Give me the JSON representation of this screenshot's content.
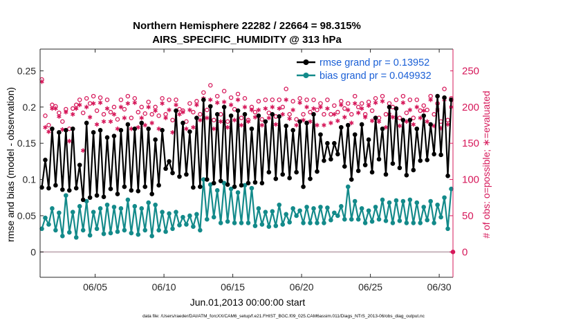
{
  "chart_data": {
    "type": "line",
    "title": "Northern Hemisphere 22282 / 22664 = 98.315%",
    "subtitle": "AIRS_SPECIFIC_HUMIDITY @ 313 hPa",
    "xlabel": "Jun.01,2013 00:00:00 start",
    "ylabel": "rmse and bias (model - observation)",
    "ylabel_right": "# of obs: o=possible; ∗=evaluated",
    "xlim": [
      1.0,
      31.0
    ],
    "ylim": [
      -0.035,
      0.28
    ],
    "ylim_right": [
      -35,
      280
    ],
    "x_ticks": [
      5,
      10,
      15,
      20,
      25,
      30
    ],
    "x_tick_labels": [
      "06/05",
      "06/10",
      "06/15",
      "06/20",
      "06/25",
      "06/30"
    ],
    "y_ticks": [
      0,
      0.05,
      0.1,
      0.15,
      0.2,
      0.25
    ],
    "y_tick_labels": [
      "0",
      "0.05",
      "0.1",
      "0.15",
      "0.2",
      "0.25"
    ],
    "y_ticks_right": [
      0,
      50,
      100,
      150,
      200,
      250
    ],
    "y_tick_labels_right": [
      "0",
      "50",
      "100",
      "150",
      "200",
      "250"
    ],
    "legend": [
      "rmse grand pr = 0.13952",
      "bias grand pr = 0.049932"
    ],
    "colors": {
      "rmse": "#000000",
      "bias": "#138a8a",
      "obs": "#d6185a",
      "zero": "#c8b4bc"
    },
    "series": [
      {
        "name": "rmse",
        "x": [
          1.125,
          1.375,
          1.625,
          1.875,
          2.125,
          2.375,
          2.625,
          2.875,
          3.125,
          3.375,
          3.625,
          3.875,
          4.125,
          4.375,
          4.625,
          4.875,
          5.125,
          5.375,
          5.625,
          5.875,
          6.125,
          6.375,
          6.625,
          6.875,
          7.125,
          7.375,
          7.625,
          7.875,
          8.125,
          8.375,
          8.625,
          8.875,
          9.125,
          9.375,
          9.625,
          9.875,
          10.125,
          10.375,
          10.625,
          10.875,
          11.125,
          11.375,
          11.625,
          11.875,
          12.125,
          12.375,
          12.625,
          12.875,
          13.125,
          13.375,
          13.625,
          13.875,
          14.125,
          14.375,
          14.625,
          14.875,
          15.125,
          15.375,
          15.625,
          15.875,
          16.125,
          16.375,
          16.625,
          16.875,
          17.125,
          17.375,
          17.625,
          17.875,
          18.125,
          18.375,
          18.625,
          18.875,
          19.125,
          19.375,
          19.625,
          19.875,
          20.125,
          20.375,
          20.625,
          20.875,
          21.125,
          21.375,
          21.625,
          21.875,
          22.125,
          22.375,
          22.625,
          22.875,
          23.125,
          23.375,
          23.625,
          23.875,
          24.125,
          24.375,
          24.625,
          24.875,
          25.125,
          25.375,
          25.625,
          25.875,
          26.125,
          26.375,
          26.625,
          26.875,
          27.125,
          27.375,
          27.625,
          27.875,
          28.125,
          28.375,
          28.625,
          28.875,
          29.125,
          29.375,
          29.625,
          29.875,
          30.125,
          30.375,
          30.625,
          30.875
        ],
        "values": [
          0.089,
          0.127,
          0.088,
          0.17,
          0.092,
          0.165,
          0.086,
          0.168,
          0.085,
          0.17,
          0.088,
          0.12,
          0.072,
          0.178,
          0.075,
          0.165,
          0.078,
          0.168,
          0.076,
          0.158,
          0.087,
          0.16,
          0.08,
          0.168,
          0.09,
          0.176,
          0.085,
          0.17,
          0.084,
          0.178,
          0.09,
          0.17,
          0.08,
          0.155,
          0.092,
          0.168,
          0.115,
          0.125,
          0.109,
          0.195,
          0.104,
          0.178,
          0.107,
          0.166,
          0.089,
          0.185,
          0.09,
          0.21,
          0.1,
          0.201,
          0.095,
          0.19,
          0.098,
          0.2,
          0.093,
          0.188,
          0.09,
          0.195,
          0.092,
          0.19,
          0.095,
          0.17,
          0.096,
          0.188,
          0.095,
          0.18,
          0.11,
          0.19,
          0.101,
          0.187,
          0.107,
          0.174,
          0.102,
          0.168,
          0.11,
          0.18,
          0.09,
          0.178,
          0.101,
          0.19,
          0.111,
          0.162,
          0.126,
          0.15,
          0.128,
          0.15,
          0.135,
          0.172,
          0.118,
          0.175,
          0.1,
          0.162,
          0.112,
          0.176,
          0.12,
          0.155,
          0.11,
          0.185,
          0.128,
          0.17,
          0.107,
          0.2,
          0.122,
          0.198,
          0.116,
          0.182,
          0.106,
          0.182,
          0.113,
          0.17,
          0.126,
          0.188,
          0.127,
          0.176,
          0.135,
          0.215,
          0.134,
          0.213,
          0.105,
          0.21
        ]
      },
      {
        "name": "bias",
        "x": [
          1.125,
          1.375,
          1.625,
          1.875,
          2.125,
          2.375,
          2.625,
          2.875,
          3.125,
          3.375,
          3.625,
          3.875,
          4.125,
          4.375,
          4.625,
          4.875,
          5.125,
          5.375,
          5.625,
          5.875,
          6.125,
          6.375,
          6.625,
          6.875,
          7.125,
          7.375,
          7.625,
          7.875,
          8.125,
          8.375,
          8.625,
          8.875,
          9.125,
          9.375,
          9.625,
          9.875,
          10.125,
          10.375,
          10.625,
          10.875,
          11.125,
          11.375,
          11.625,
          11.875,
          12.125,
          12.375,
          12.625,
          12.875,
          13.125,
          13.375,
          13.625,
          13.875,
          14.125,
          14.375,
          14.625,
          14.875,
          15.125,
          15.375,
          15.625,
          15.875,
          16.125,
          16.375,
          16.625,
          16.875,
          17.125,
          17.375,
          17.625,
          17.875,
          18.125,
          18.375,
          18.625,
          18.875,
          19.125,
          19.375,
          19.625,
          19.875,
          20.125,
          20.375,
          20.625,
          20.875,
          21.125,
          21.375,
          21.625,
          21.875,
          22.125,
          22.375,
          22.625,
          22.875,
          23.125,
          23.375,
          23.625,
          23.875,
          24.125,
          24.375,
          24.625,
          24.875,
          25.125,
          25.375,
          25.625,
          25.875,
          26.125,
          26.375,
          26.625,
          26.875,
          27.125,
          27.375,
          27.625,
          27.875,
          28.125,
          28.375,
          28.625,
          28.875,
          29.125,
          29.375,
          29.625,
          29.875,
          30.125,
          30.375,
          30.625,
          30.875
        ],
        "values": [
          0.032,
          0.047,
          0.038,
          0.06,
          0.03,
          0.054,
          0.022,
          0.078,
          0.027,
          0.055,
          0.02,
          0.063,
          0.03,
          0.07,
          0.023,
          0.055,
          0.032,
          0.06,
          0.025,
          0.065,
          0.026,
          0.062,
          0.028,
          0.06,
          0.03,
          0.072,
          0.026,
          0.063,
          0.024,
          0.06,
          0.03,
          0.068,
          0.022,
          0.065,
          0.03,
          0.055,
          0.028,
          0.053,
          0.032,
          0.055,
          0.037,
          0.048,
          0.038,
          0.05,
          0.035,
          0.052,
          0.03,
          0.1,
          0.045,
          0.093,
          0.048,
          0.085,
          0.04,
          0.095,
          0.042,
          0.087,
          0.04,
          0.082,
          0.04,
          0.092,
          0.04,
          0.088,
          0.036,
          0.06,
          0.038,
          0.055,
          0.035,
          0.056,
          0.036,
          0.065,
          0.038,
          0.052,
          0.041,
          0.06,
          0.05,
          0.057,
          0.04,
          0.062,
          0.04,
          0.06,
          0.04,
          0.062,
          0.04,
          0.061,
          0.044,
          0.054,
          0.05,
          0.063,
          0.045,
          0.09,
          0.045,
          0.07,
          0.045,
          0.06,
          0.04,
          0.057,
          0.042,
          0.062,
          0.045,
          0.072,
          0.043,
          0.068,
          0.04,
          0.071,
          0.043,
          0.07,
          0.04,
          0.072,
          0.04,
          0.068,
          0.04,
          0.062,
          0.044,
          0.07,
          0.04,
          0.065,
          0.048,
          0.075,
          0.032,
          0.087
        ]
      },
      {
        "name": "obs_possible",
        "values": [
          238,
          188,
          175,
          203,
          201,
          192,
          180,
          197,
          170,
          198,
          203,
          210,
          192,
          212,
          205,
          215,
          195,
          213,
          190,
          210,
          193,
          200,
          183,
          210,
          197,
          215,
          185,
          212,
          193,
          200,
          191,
          207,
          190,
          200,
          188,
          212,
          190,
          210,
          182,
          210,
          197,
          195,
          180,
          205,
          193,
          208,
          190,
          220,
          196,
          230,
          182,
          215,
          190,
          222,
          180,
          213,
          197,
          218,
          185,
          212,
          182,
          200,
          193,
          208,
          183,
          210,
          192,
          210,
          187,
          210,
          200,
          225,
          190,
          208,
          183,
          212,
          190,
          210,
          193,
          210,
          196,
          205,
          190,
          210,
          190,
          202,
          193,
          208,
          198,
          205,
          190,
          215,
          200,
          205,
          190,
          207,
          195,
          212,
          185,
          215,
          190,
          205,
          200,
          210,
          185,
          215,
          192,
          210,
          185,
          210,
          195,
          202,
          196,
          215,
          190,
          205,
          180,
          225,
          182,
          212
        ]
      },
      {
        "name": "obs_evaluated",
        "values": [
          235,
          172,
          166,
          198,
          198,
          187,
          169,
          193,
          153,
          190,
          198,
          203,
          140,
          200,
          186,
          205,
          176,
          206,
          180,
          198,
          180,
          190,
          170,
          200,
          185,
          205,
          170,
          206,
          172,
          185,
          175,
          200,
          178,
          195,
          170,
          205,
          185,
          196,
          165,
          203,
          190,
          193,
          170,
          196,
          172,
          203,
          182,
          212,
          185,
          210,
          170,
          206,
          180,
          207,
          172,
          203,
          182,
          210,
          175,
          200,
          180,
          196,
          186,
          196,
          175,
          198,
          185,
          200,
          176,
          198,
          190,
          210,
          184,
          196,
          175,
          206,
          182,
          200,
          180,
          198,
          175,
          200,
          175,
          198,
          178,
          190,
          181,
          203,
          186,
          196,
          178,
          205,
          192,
          198,
          186,
          202,
          181,
          206,
          180,
          208,
          172,
          190,
          186,
          198,
          174,
          206,
          180,
          196,
          176,
          200,
          185,
          195,
          180,
          210,
          174,
          196,
          171,
          210,
          176,
          200
        ]
      }
    ]
  },
  "footnote": "data file: /Users/raeder/DAI/ATM_forcXX/CAM6_setup/f.e21.FHIST_BGC.f09_025.CAM6assim.011/Diags_NTrS_2013-06/obs_diag_output.nc"
}
